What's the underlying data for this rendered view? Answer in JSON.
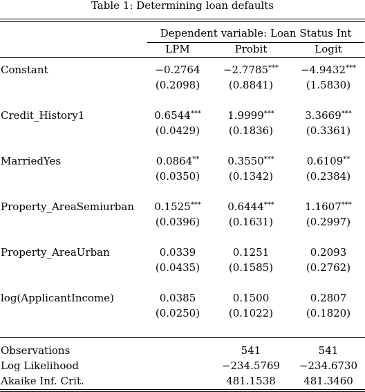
{
  "caption": "Table 1: Determining loan defaults",
  "dep_var_label": "Dependent variable: Loan Status Int",
  "columns": [
    "LPM",
    "Probit",
    "Logit"
  ],
  "rows": [
    {
      "name": "Constant",
      "coef": [
        {
          "v": "−0.2764",
          "stars": ""
        },
        {
          "v": "−2.7785",
          "stars": "***"
        },
        {
          "v": "−4.9432",
          "stars": "***"
        }
      ],
      "se": [
        "(0.2098)",
        "(0.8841)",
        "(1.5830)"
      ]
    },
    {
      "name": "Credit_History1",
      "coef": [
        {
          "v": "0.6544",
          "stars": "***"
        },
        {
          "v": "1.9999",
          "stars": "***"
        },
        {
          "v": "3.3669",
          "stars": "***"
        }
      ],
      "se": [
        "(0.0429)",
        "(0.1836)",
        "(0.3361)"
      ]
    },
    {
      "name": "MarriedYes",
      "coef": [
        {
          "v": "0.0864",
          "stars": "**"
        },
        {
          "v": "0.3550",
          "stars": "***"
        },
        {
          "v": "0.6109",
          "stars": "**"
        }
      ],
      "se": [
        "(0.0350)",
        "(0.1342)",
        "(0.2384)"
      ]
    },
    {
      "name": "Property_AreaSemiurban",
      "coef": [
        {
          "v": "0.1525",
          "stars": "***"
        },
        {
          "v": "0.6444",
          "stars": "***"
        },
        {
          "v": "1.1607",
          "stars": "***"
        }
      ],
      "se": [
        "(0.0396)",
        "(0.1631)",
        "(0.2997)"
      ]
    },
    {
      "name": "Property_AreaUrban",
      "coef": [
        {
          "v": "0.0339",
          "stars": ""
        },
        {
          "v": "0.1251",
          "stars": ""
        },
        {
          "v": "0.2093",
          "stars": ""
        }
      ],
      "se": [
        "(0.0435)",
        "(0.1585)",
        "(0.2762)"
      ]
    },
    {
      "name": "log(ApplicantIncome)",
      "coef": [
        {
          "v": "0.0385",
          "stars": ""
        },
        {
          "v": "0.1500",
          "stars": ""
        },
        {
          "v": "0.2807",
          "stars": ""
        }
      ],
      "se": [
        "(0.0250)",
        "(0.1022)",
        "(0.1820)"
      ]
    }
  ],
  "stats": [
    {
      "name": "Observations",
      "values": [
        "",
        "541",
        "541"
      ]
    },
    {
      "name": "Log Likelihood",
      "values": [
        "",
        "−234.5769",
        "−234.6730"
      ]
    },
    {
      "name": "Akaike Inf. Crit.",
      "values": [
        "",
        "481.1538",
        "481.3460"
      ]
    }
  ]
}
